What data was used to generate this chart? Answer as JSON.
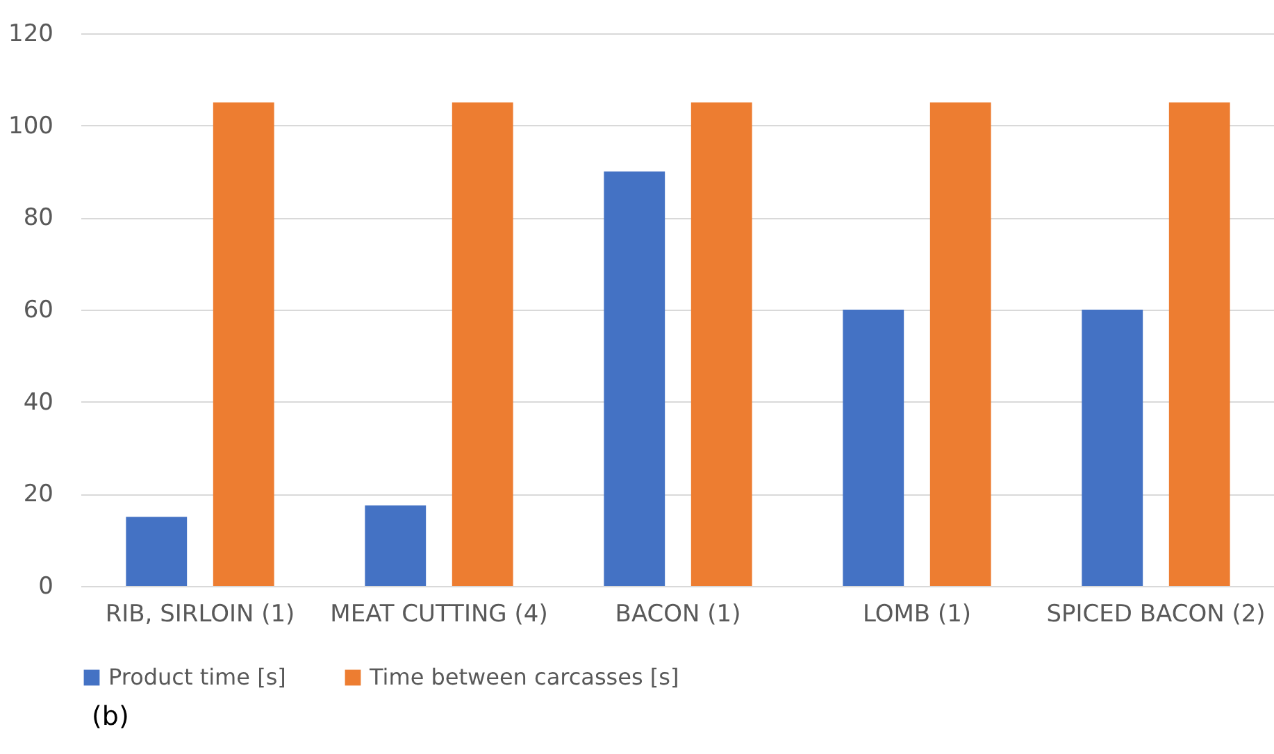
{
  "chart_data": {
    "type": "bar",
    "categories": [
      "RIB, SIRLOIN (1)",
      "MEAT CUTTING (4)",
      "BACON (1)",
      "LOMB (1)",
      "SPICED BACON (2)"
    ],
    "series": [
      {
        "name": "Product time [s]",
        "color": "#4472c4",
        "values": [
          15,
          17.5,
          90,
          60,
          60
        ]
      },
      {
        "name": "Time between carcasses [s]",
        "color": "#ed7d31",
        "values": [
          105,
          105,
          105,
          105,
          105
        ]
      }
    ],
    "ylim": [
      0,
      120
    ],
    "yticks": [
      0,
      20,
      40,
      60,
      80,
      100,
      120
    ],
    "grid": "y",
    "legend": "bottom",
    "annotations": [
      "(b)"
    ]
  }
}
